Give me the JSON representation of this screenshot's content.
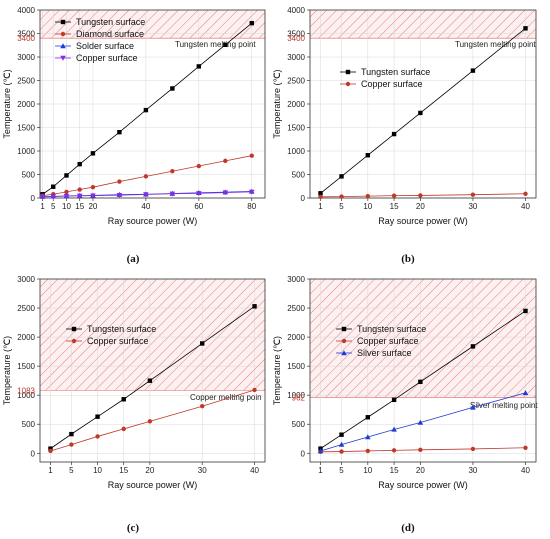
{
  "chart_data": [
    {
      "type": "line",
      "panel_label": "(a)",
      "xlabel": "Ray source power (W)",
      "ylabel": "Temperature (℃)",
      "xlim": [
        0,
        85
      ],
      "ylim": [
        0,
        4000
      ],
      "xticks": [
        1,
        5,
        10,
        15,
        20,
        40,
        60,
        80
      ],
      "yticks": [
        0,
        500,
        1000,
        1500,
        2000,
        2500,
        3000,
        3500,
        4000
      ],
      "threshold": {
        "value": 3400,
        "label": "3400",
        "note": "Tungsten melting point"
      },
      "legend": "top-left",
      "series": [
        {
          "name": "Tungsten surface",
          "color": "#000000",
          "marker": "square",
          "x": [
            1,
            5,
            10,
            15,
            20,
            30,
            40,
            50,
            60,
            70,
            80
          ],
          "y": [
            80,
            240,
            480,
            720,
            950,
            1400,
            1870,
            2330,
            2800,
            3260,
            3720
          ]
        },
        {
          "name": "Diamond surface",
          "color": "#c0392b",
          "marker": "circle",
          "x": [
            1,
            5,
            10,
            15,
            20,
            30,
            40,
            50,
            60,
            70,
            80
          ],
          "y": [
            50,
            80,
            130,
            180,
            230,
            350,
            460,
            570,
            680,
            790,
            900
          ]
        },
        {
          "name": "Solder surface",
          "color": "#1f3bd6",
          "marker": "triangle-up",
          "x": [
            1,
            5,
            10,
            15,
            20,
            30,
            40,
            50,
            60,
            70,
            80
          ],
          "y": [
            30,
            35,
            45,
            50,
            55,
            70,
            80,
            95,
            110,
            125,
            140
          ]
        },
        {
          "name": "Copper surface",
          "color": "#8a2be2",
          "marker": "triangle-down",
          "x": [
            1,
            5,
            10,
            15,
            20,
            30,
            40,
            50,
            60,
            70,
            80
          ],
          "y": [
            25,
            30,
            40,
            45,
            50,
            60,
            75,
            90,
            100,
            115,
            130
          ]
        }
      ]
    },
    {
      "type": "line",
      "panel_label": "(b)",
      "xlabel": "Ray source power (W)",
      "ylabel": "Temperature (℃)",
      "xlim": [
        -1,
        42
      ],
      "ylim": [
        0,
        4000
      ],
      "xticks": [
        1,
        5,
        10,
        15,
        20,
        30,
        40
      ],
      "yticks": [
        0,
        500,
        1000,
        1500,
        2000,
        2500,
        3000,
        3500,
        4000
      ],
      "threshold": {
        "value": 3400,
        "label": "3400",
        "note": "Tungsten melting point"
      },
      "legend": "top-left",
      "series": [
        {
          "name": "Tungsten surface",
          "color": "#000000",
          "marker": "square",
          "x": [
            1,
            5,
            10,
            15,
            20,
            30,
            40
          ],
          "y": [
            100,
            460,
            910,
            1360,
            1810,
            2710,
            3610
          ]
        },
        {
          "name": "Copper surface",
          "color": "#c0392b",
          "marker": "circle",
          "x": [
            1,
            5,
            10,
            15,
            20,
            30,
            40
          ],
          "y": [
            25,
            30,
            40,
            50,
            55,
            70,
            90
          ]
        }
      ]
    },
    {
      "type": "line",
      "panel_label": "(c)",
      "xlabel": "Ray source power (W)",
      "ylabel": "Temperature (℃)",
      "xlim": [
        -1,
        42
      ],
      "ylim": [
        -150,
        3000
      ],
      "xticks": [
        1,
        5,
        10,
        15,
        20,
        30,
        40
      ],
      "yticks": [
        0,
        500,
        1000,
        1500,
        2000,
        2500,
        3000
      ],
      "threshold": {
        "value": 1083,
        "label": "1083",
        "note": "Copper melting poin"
      },
      "legend": "top-left",
      "series": [
        {
          "name": "Tungsten surface",
          "color": "#000000",
          "marker": "square",
          "x": [
            1,
            5,
            10,
            15,
            20,
            30,
            40
          ],
          "y": [
            80,
            330,
            630,
            930,
            1250,
            1890,
            2530
          ]
        },
        {
          "name": "Copper surface",
          "color": "#c0392b",
          "marker": "circle",
          "x": [
            1,
            5,
            10,
            15,
            20,
            30,
            40
          ],
          "y": [
            40,
            150,
            290,
            420,
            550,
            810,
            1090
          ]
        }
      ]
    },
    {
      "type": "line",
      "panel_label": "(d)",
      "xlabel": "Ray source power (W)",
      "ylabel": "Temperature (℃)",
      "xlim": [
        -1,
        42
      ],
      "ylim": [
        -150,
        3000
      ],
      "xticks": [
        1,
        5,
        10,
        15,
        20,
        30,
        40
      ],
      "yticks": [
        0,
        500,
        1000,
        1500,
        2000,
        2500,
        3000
      ],
      "threshold": {
        "value": 962,
        "label": "962",
        "note": "Silver melting point"
      },
      "legend": "top-left",
      "series": [
        {
          "name": "Tungsten surface",
          "color": "#000000",
          "marker": "square",
          "x": [
            1,
            5,
            10,
            15,
            20,
            30,
            40
          ],
          "y": [
            80,
            320,
            620,
            920,
            1230,
            1840,
            2450
          ]
        },
        {
          "name": "Copper surface",
          "color": "#c0392b",
          "marker": "circle",
          "x": [
            1,
            5,
            10,
            15,
            20,
            30,
            40
          ],
          "y": [
            25,
            30,
            40,
            50,
            60,
            75,
            95
          ]
        },
        {
          "name": "Silver surface",
          "color": "#1f3bd6",
          "marker": "triangle-up",
          "x": [
            1,
            5,
            10,
            15,
            20,
            30,
            40
          ],
          "y": [
            40,
            150,
            280,
            410,
            530,
            790,
            1040
          ]
        }
      ]
    }
  ]
}
